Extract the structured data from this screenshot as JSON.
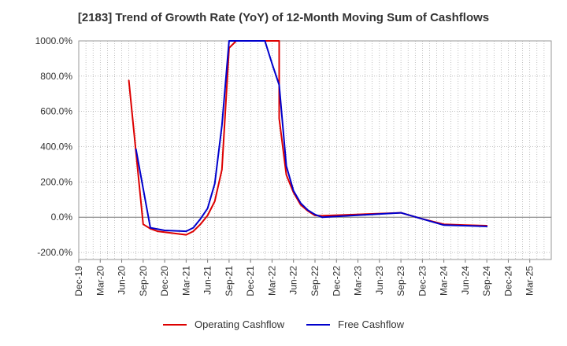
{
  "chart_data": {
    "type": "line",
    "title": "[2183]  Trend of Growth Rate (YoY) of 12-Month Moving Sum of Cashflows",
    "xlabel": "",
    "ylabel": "",
    "x_ticks": [
      "Dec-19",
      "Mar-20",
      "Jun-20",
      "Sep-20",
      "Dec-20",
      "Mar-21",
      "Jun-21",
      "Sep-21",
      "Dec-21",
      "Mar-22",
      "Jun-22",
      "Sep-22",
      "Dec-22",
      "Mar-23",
      "Jun-23",
      "Sep-23",
      "Dec-23",
      "Mar-24",
      "Jun-24",
      "Sep-24",
      "Dec-24",
      "Mar-25"
    ],
    "y_ticks": [
      "1000.0%",
      "800.0%",
      "600.0%",
      "400.0%",
      "200.0%",
      "0.0%",
      "-200.0%"
    ],
    "ylim": [
      -240,
      1000
    ],
    "grid": true,
    "legend_position": "bottom",
    "series": [
      {
        "name": "Operating Cashflow",
        "color": "#dd0000",
        "points": [
          [
            "2020-07",
            775
          ],
          [
            "2020-09",
            -40
          ],
          [
            "2020-10",
            -65
          ],
          [
            "2020-11",
            -80
          ],
          [
            "2020-12",
            -85
          ],
          [
            "2021-01",
            -90
          ],
          [
            "2021-02",
            -95
          ],
          [
            "2021-03",
            -100
          ],
          [
            "2021-04",
            -80
          ],
          [
            "2021-05",
            -40
          ],
          [
            "2021-06",
            10
          ],
          [
            "2021-07",
            90
          ],
          [
            "2021-08",
            270
          ],
          [
            "2021-09",
            960
          ],
          [
            "2021-10",
            1000
          ],
          [
            "2022-04",
            1000
          ],
          [
            "2022-04",
            560
          ],
          [
            "2022-05",
            240
          ],
          [
            "2022-06",
            140
          ],
          [
            "2022-07",
            70
          ],
          [
            "2022-08",
            35
          ],
          [
            "2022-09",
            10
          ],
          [
            "2022-10",
            8
          ],
          [
            "2023-09",
            25
          ],
          [
            "2023-12",
            -10
          ],
          [
            "2024-03",
            -40
          ],
          [
            "2024-06",
            -45
          ],
          [
            "2024-09",
            -48
          ]
        ]
      },
      {
        "name": "Free Cashflow",
        "color": "#0000cc",
        "points": [
          [
            "2020-08",
            385
          ],
          [
            "2020-10",
            -60
          ],
          [
            "2020-12",
            -75
          ],
          [
            "2021-03",
            -80
          ],
          [
            "2021-04",
            -60
          ],
          [
            "2021-05",
            -10
          ],
          [
            "2021-06",
            50
          ],
          [
            "2021-07",
            190
          ],
          [
            "2021-08",
            520
          ],
          [
            "2021-09",
            1000
          ],
          [
            "2022-02",
            1000
          ],
          [
            "2022-03",
            870
          ],
          [
            "2022-04",
            750
          ],
          [
            "2022-05",
            290
          ],
          [
            "2022-06",
            150
          ],
          [
            "2022-07",
            80
          ],
          [
            "2022-08",
            40
          ],
          [
            "2022-09",
            15
          ],
          [
            "2022-10",
            0
          ],
          [
            "2023-09",
            25
          ],
          [
            "2023-12",
            -10
          ],
          [
            "2024-03",
            -45
          ],
          [
            "2024-06",
            -48
          ],
          [
            "2024-09",
            -52
          ]
        ]
      }
    ]
  }
}
